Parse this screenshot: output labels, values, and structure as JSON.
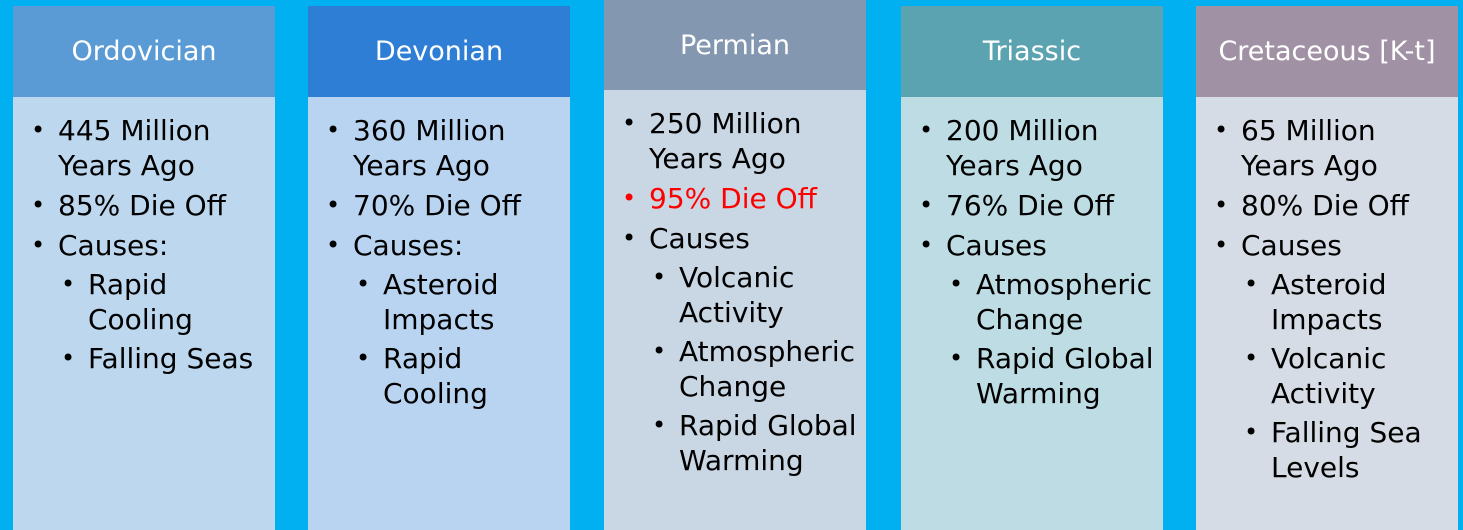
{
  "colors": {
    "background": "#00b0f0",
    "highlight": "#ff0000"
  },
  "columns": [
    {
      "title": "Ordovician",
      "header_color": "#5b9bd5",
      "body_color": "#bdd7ee",
      "items": [
        {
          "text": "445 Million Years Ago",
          "level": 1
        },
        {
          "text": "85% Die Off",
          "level": 1
        },
        {
          "text": "Causes:",
          "level": 1
        },
        {
          "text": "Rapid Cooling",
          "level": 2
        },
        {
          "text": "Falling Seas",
          "level": 2
        }
      ]
    },
    {
      "title": "Devonian",
      "header_color": "#2e7ed6",
      "body_color": "#b9d4f1",
      "items": [
        {
          "text": "360 Million Years Ago",
          "level": 1
        },
        {
          "text": "70% Die Off",
          "level": 1
        },
        {
          "text": "Causes:",
          "level": 1
        },
        {
          "text": "Asteroid Impacts",
          "level": 2
        },
        {
          "text": "Rapid Cooling",
          "level": 2
        }
      ]
    },
    {
      "title": "Permian",
      "header_color": "#8497b0",
      "body_color": "#c9d6e3",
      "items": [
        {
          "text": "250 Million Years Ago",
          "level": 1
        },
        {
          "text": "95% Die Off",
          "level": 1,
          "highlight": true
        },
        {
          "text": "Causes",
          "level": 1
        },
        {
          "text": "Volcanic Activity",
          "level": 2
        },
        {
          "text": "Atmospheric Change",
          "level": 2
        },
        {
          "text": "Rapid Global Warming",
          "level": 2
        }
      ]
    },
    {
      "title": "Triassic",
      "header_color": "#5ba3b0",
      "body_color": "#bedce4",
      "items": [
        {
          "text": "200 Million Years Ago",
          "level": 1
        },
        {
          "text": "76% Die Off",
          "level": 1
        },
        {
          "text": "Causes",
          "level": 1
        },
        {
          "text": "Atmospheric Change",
          "level": 2
        },
        {
          "text": "Rapid Global Warming",
          "level": 2
        }
      ]
    },
    {
      "title": "Cretaceous [K-t]",
      "header_color": "#a092a4",
      "body_color": "#d6dce5",
      "items": [
        {
          "text": "65 Million Years Ago",
          "level": 1
        },
        {
          "text": "80% Die Off",
          "level": 1
        },
        {
          "text": "Causes",
          "level": 1
        },
        {
          "text": "Asteroid Impacts",
          "level": 2
        },
        {
          "text": "Volcanic Activity",
          "level": 2
        },
        {
          "text": "Falling Sea Levels",
          "level": 2
        }
      ]
    }
  ]
}
